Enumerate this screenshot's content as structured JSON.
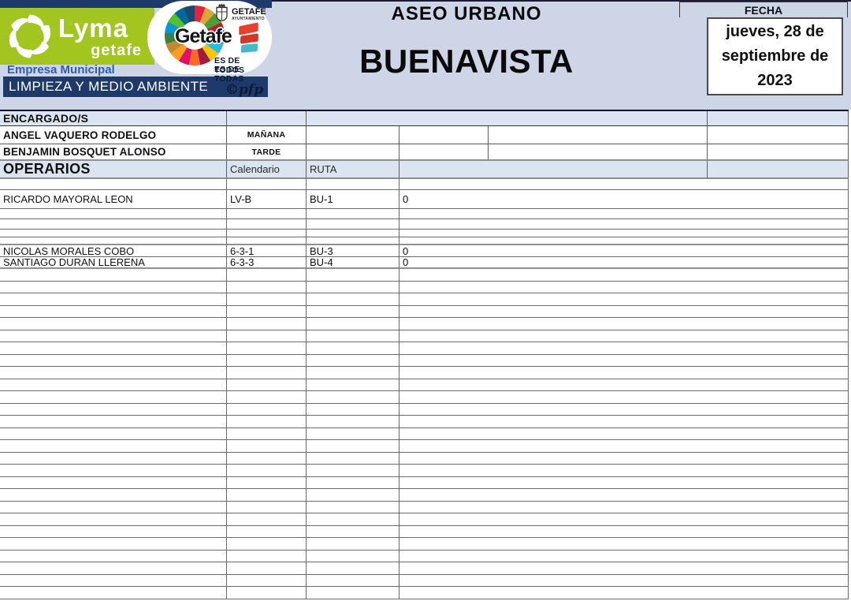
{
  "brand": {
    "lyma_name": "Lyma",
    "lyma_sub": "getafe",
    "empresa": "Empresa Municipal",
    "departamento": "LIMPIEZA Y MEDIO AMBIENTE",
    "getafe_name": "Getafe",
    "ayuntamiento_name": "GETAFE",
    "ayuntamiento_sub": "AYUNTAMIENTO",
    "motto_line1": "ES DE TODOS",
    "motto_line2": "ES DE TODAS",
    "signature": "©pfp",
    "sdg_wheel_icon": "sdg-color-wheel",
    "swirl_icon": "lyma-swirl"
  },
  "header": {
    "service_title": "ASEO URBANO",
    "zone_title": "BUENAVISTA",
    "fecha_label": "FECHA",
    "fecha_value": "jueves, 28 de septiembre de 2023"
  },
  "table": {
    "encargados_title": "ENCARGADO/S",
    "encargados": [
      {
        "name": "ANGEL VAQUERO RODELGO",
        "shift": "MAÑANA"
      },
      {
        "name": "BENJAMIN BOSQUET ALONSO",
        "shift": "TARDE"
      }
    ],
    "operarios_title": "OPERARIOS",
    "columns": {
      "calendario": "Calendario",
      "ruta": "RUTA"
    },
    "operarios": [
      {
        "name": "RICARDO MAYORAL LEON",
        "calendario": "LV-B",
        "ruta": "BU-1",
        "value": "0"
      },
      {
        "name": "NICOLAS MORALES COBO",
        "calendario": "6-3-1",
        "ruta": "BU-3",
        "value": "0"
      },
      {
        "name": "SANTIAGO DURAN LLERENA",
        "calendario": "6-3-3",
        "ruta": "BU-4",
        "value": "0"
      }
    ]
  },
  "colors": {
    "lyma_green": "#a2c520",
    "navy": "#1d3a6b",
    "header_band": "#cdd5e7",
    "section_blue": "#dbe5f1"
  }
}
